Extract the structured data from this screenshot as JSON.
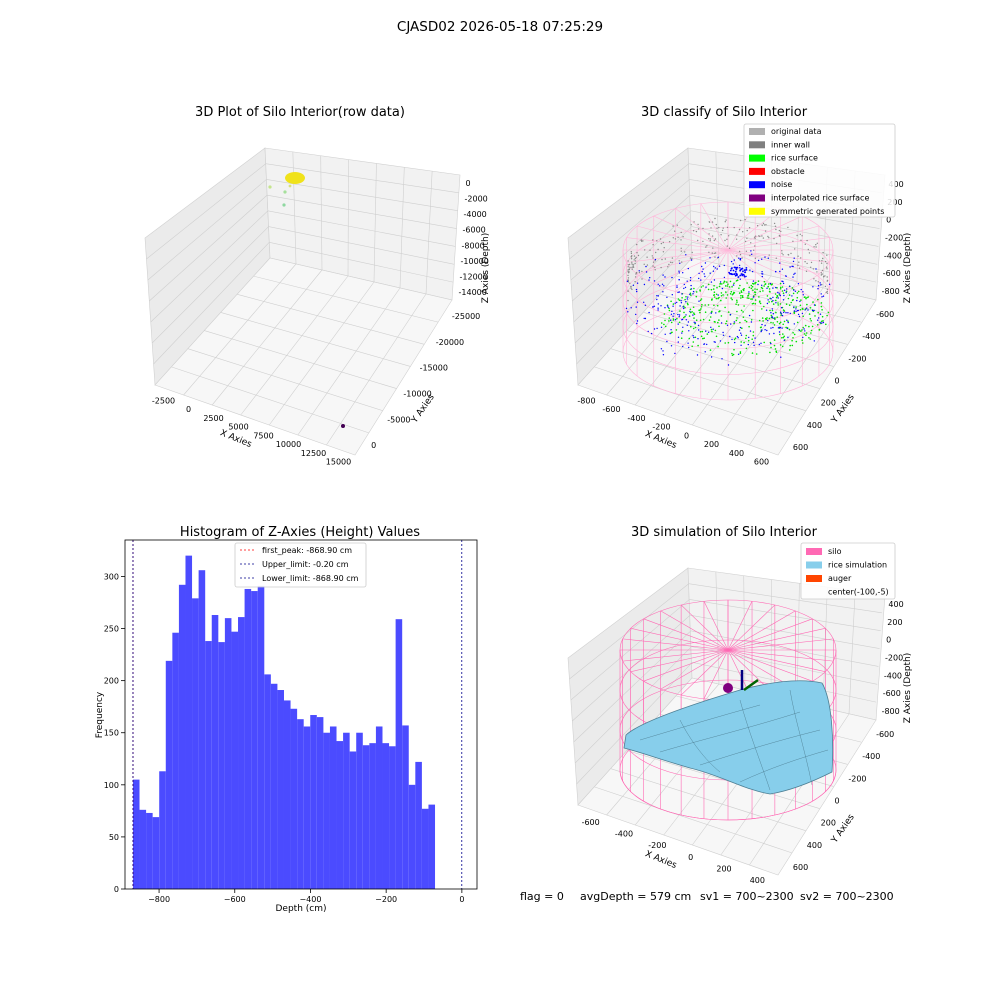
{
  "suptitle": "CJASD02 2026-05-18 07:25:29",
  "panels": {
    "raw": {
      "title": "3D Plot of Silo Interior(row data)",
      "xlabel": "X Axies",
      "ylabel": "Y Axies",
      "zlabel": "Z Axies (Depth)",
      "xticks": [
        "-2500",
        "0",
        "2500",
        "5000",
        "7500",
        "10000",
        "12500",
        "15000"
      ],
      "yticks": [
        "0",
        "-5000",
        "-10000",
        "-15000",
        "-20000",
        "-25000"
      ],
      "zticks": [
        "0",
        "-2000",
        "-4000",
        "-6000",
        "-8000",
        "-10000",
        "-12000",
        "-14000"
      ]
    },
    "classify": {
      "title": "3D classify of Silo Interior",
      "xlabel": "X Axies",
      "ylabel": "Y Axies",
      "zlabel": "Z Axies (Depth)",
      "xticks": [
        "-800",
        "-600",
        "-400",
        "-200",
        "0",
        "200",
        "400",
        "600"
      ],
      "yticks": [
        "600",
        "400",
        "200",
        "0",
        "-200",
        "-400",
        "-600"
      ],
      "zticks": [
        "400",
        "200",
        "0",
        "-200",
        "-400",
        "-600",
        "-800"
      ],
      "legend": [
        {
          "label": "original data",
          "color": "#b0b0b0"
        },
        {
          "label": "inner wall",
          "color": "#808080"
        },
        {
          "label": "rice surface",
          "color": "#00ff00"
        },
        {
          "label": "obstacle",
          "color": "#ff0000"
        },
        {
          "label": "noise",
          "color": "#0000ff"
        },
        {
          "label": "interpolated rice surface",
          "color": "#800080"
        },
        {
          "label": "symmetric generated points",
          "color": "#ffff00"
        }
      ]
    },
    "simulation": {
      "title": "3D simulation of Silo Interior",
      "xlabel": "X Axies",
      "ylabel": "Y Axies",
      "zlabel": "Z Axies (Depth)",
      "xticks": [
        "-600",
        "-400",
        "-200",
        "0",
        "200",
        "400"
      ],
      "yticks": [
        "600",
        "400",
        "200",
        "0",
        "-200",
        "-400",
        "-600"
      ],
      "zticks": [
        "400",
        "200",
        "0",
        "-200",
        "-400",
        "-600",
        "-800"
      ],
      "legend": [
        {
          "label": "silo",
          "color": "#ff69b4"
        },
        {
          "label": "rice simulation",
          "color": "#87ceeb"
        },
        {
          "label": "auger",
          "color": "#ff4500"
        },
        {
          "label": "center(-100,-5)",
          "color": ""
        }
      ]
    }
  },
  "status": {
    "flag": "flag = 0",
    "avg_depth": "avgDepth = 579 cm",
    "sv1": "sv1 = 700~2300",
    "sv2": "sv2 = 700~2300"
  },
  "colors": {
    "bar": "#4b4bff",
    "first_peak": "#ff0000",
    "limit": "#00008b"
  },
  "chart_data": {
    "type": "bar",
    "title": "Histogram of Z-Axies (Height) Values",
    "xlabel": "Depth (cm)",
    "ylabel": "Frequency",
    "xlim": [
      -890,
      40
    ],
    "ylim": [
      0,
      335
    ],
    "xticks": [
      -800,
      -600,
      -400,
      -200,
      0
    ],
    "yticks": [
      0,
      50,
      100,
      150,
      200,
      250,
      300
    ],
    "bin_edges_start": -869,
    "bin_width": 17.35,
    "values": [
      105,
      76,
      73,
      69,
      113,
      219,
      246,
      292,
      320,
      279,
      306,
      238,
      263,
      237,
      260,
      247,
      261,
      288,
      286,
      291,
      206,
      197,
      191,
      181,
      173,
      163,
      156,
      167,
      165,
      150,
      156,
      142,
      150,
      132,
      150,
      138,
      140,
      156,
      140,
      137,
      259,
      157,
      100,
      122,
      77,
      81
    ],
    "vlines": [
      {
        "label": "first_peak: -868.90 cm",
        "x": -868.9,
        "style": "dashed",
        "color": "#ff0000"
      },
      {
        "label": "Upper_limit: -0.20 cm",
        "x": -0.2,
        "style": "dashed",
        "color": "#00008b"
      },
      {
        "label": "Lower_limit: -868.90 cm",
        "x": -868.9,
        "style": "dashed",
        "color": "#00008b"
      }
    ],
    "legend_position": "upper center"
  }
}
